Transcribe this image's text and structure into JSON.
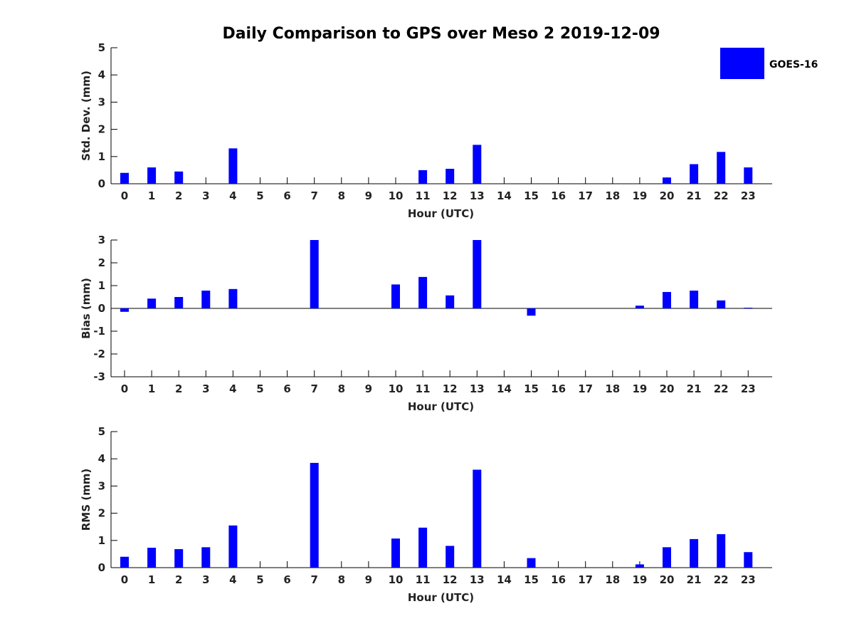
{
  "title": "Daily Comparison to GPS over Meso 2 2019-12-09",
  "legend": {
    "label": "GOES-16",
    "color": "#0000ff",
    "placement": "top-right"
  },
  "chart_data": [
    {
      "type": "bar",
      "categories": [
        "0",
        "1",
        "2",
        "3",
        "4",
        "5",
        "6",
        "7",
        "8",
        "9",
        "10",
        "11",
        "12",
        "13",
        "14",
        "15",
        "16",
        "17",
        "18",
        "19",
        "20",
        "21",
        "22",
        "23"
      ],
      "series": [
        {
          "name": "GOES-16",
          "values": [
            0.4,
            0.6,
            0.45,
            null,
            1.3,
            null,
            null,
            null,
            null,
            null,
            null,
            0.5,
            0.55,
            1.43,
            null,
            null,
            null,
            null,
            null,
            null,
            0.23,
            0.72,
            1.17,
            0.6
          ]
        }
      ],
      "xlabel": "Hour (UTC)",
      "ylabel": "Std. Dev. (mm)",
      "ylim": [
        0,
        5
      ],
      "yticks": [
        "0",
        "1",
        "2",
        "3",
        "4",
        "5"
      ]
    },
    {
      "type": "bar",
      "categories": [
        "0",
        "1",
        "2",
        "3",
        "4",
        "5",
        "6",
        "7",
        "8",
        "9",
        "10",
        "11",
        "12",
        "13",
        "14",
        "15",
        "16",
        "17",
        "18",
        "19",
        "20",
        "21",
        "22",
        "23"
      ],
      "series": [
        {
          "name": "GOES-16",
          "values": [
            -0.15,
            0.43,
            0.5,
            0.78,
            0.85,
            null,
            null,
            3.0,
            null,
            null,
            1.05,
            1.38,
            0.57,
            3.0,
            null,
            -0.32,
            null,
            null,
            null,
            0.12,
            0.72,
            0.78,
            0.35,
            0.03
          ]
        }
      ],
      "xlabel": "Hour (UTC)",
      "ylabel": "Bias (mm)",
      "ylim": [
        -3,
        3
      ],
      "yticks": [
        "-3",
        "-2",
        "-1",
        "0",
        "1",
        "2",
        "3"
      ]
    },
    {
      "type": "bar",
      "categories": [
        "0",
        "1",
        "2",
        "3",
        "4",
        "5",
        "6",
        "7",
        "8",
        "9",
        "10",
        "11",
        "12",
        "13",
        "14",
        "15",
        "16",
        "17",
        "18",
        "19",
        "20",
        "21",
        "22",
        "23"
      ],
      "series": [
        {
          "name": "GOES-16",
          "values": [
            0.4,
            0.73,
            0.68,
            0.75,
            1.55,
            null,
            null,
            3.85,
            null,
            null,
            1.07,
            1.47,
            0.8,
            3.6,
            null,
            0.35,
            null,
            null,
            null,
            0.12,
            0.75,
            1.05,
            1.23,
            0.57
          ]
        }
      ],
      "xlabel": "Hour (UTC)",
      "ylabel": "RMS (mm)",
      "ylim": [
        0,
        5
      ],
      "yticks": [
        "0",
        "1",
        "2",
        "3",
        "4",
        "5"
      ]
    }
  ]
}
